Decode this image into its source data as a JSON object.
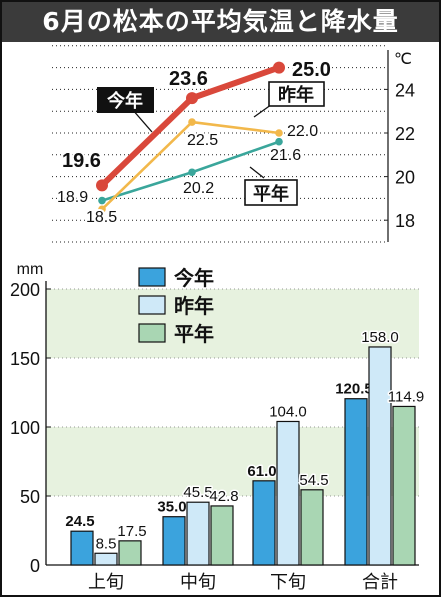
{
  "title": "6月の松本の平均気温と降水量",
  "colors": {
    "this_year": "#d9483b",
    "last_year": "#f2b84b",
    "normal": "#3aa69b",
    "bar_this_year": "#3ba3dd",
    "bar_last_year": "#cfe9f8",
    "bar_normal": "#a9d6b3",
    "band": "#e7f2df"
  },
  "chart_data": [
    {
      "type": "line",
      "title": "",
      "unit": "℃",
      "ylim": [
        16,
        27
      ],
      "yticks": [
        "18",
        "20",
        "22",
        "24"
      ],
      "series": [
        {
          "name": "今年",
          "values": [
            19.6,
            23.6,
            25.0
          ],
          "labels": [
            "19.6",
            "23.6",
            "25.0"
          ]
        },
        {
          "name": "昨年",
          "values": [
            18.5,
            22.5,
            22.0
          ],
          "labels": [
            "18.5",
            "22.5",
            "22.0"
          ]
        },
        {
          "name": "平年",
          "values": [
            18.9,
            20.2,
            21.6
          ],
          "labels": [
            "18.9",
            "20.2",
            "21.6"
          ]
        }
      ]
    },
    {
      "type": "bar",
      "unit": "mm",
      "categories": [
        "上旬",
        "中旬",
        "下旬",
        "合計"
      ],
      "ylim": [
        0,
        200
      ],
      "yticks": [
        "0",
        "50",
        "100",
        "150",
        "200"
      ],
      "series": [
        {
          "name": "今年",
          "values": [
            24.5,
            35.0,
            61.0,
            120.5
          ],
          "labels": [
            "24.5",
            "35.0",
            "61.0",
            "120.5"
          ]
        },
        {
          "name": "昨年",
          "values": [
            8.5,
            45.5,
            104.0,
            158.0
          ],
          "labels": [
            "8.5",
            "45.5",
            "104.0",
            "158.0"
          ]
        },
        {
          "name": "平年",
          "values": [
            17.5,
            42.8,
            54.5,
            114.9
          ],
          "labels": [
            "17.5",
            "42.8",
            "54.5",
            "114.9"
          ]
        }
      ]
    }
  ]
}
